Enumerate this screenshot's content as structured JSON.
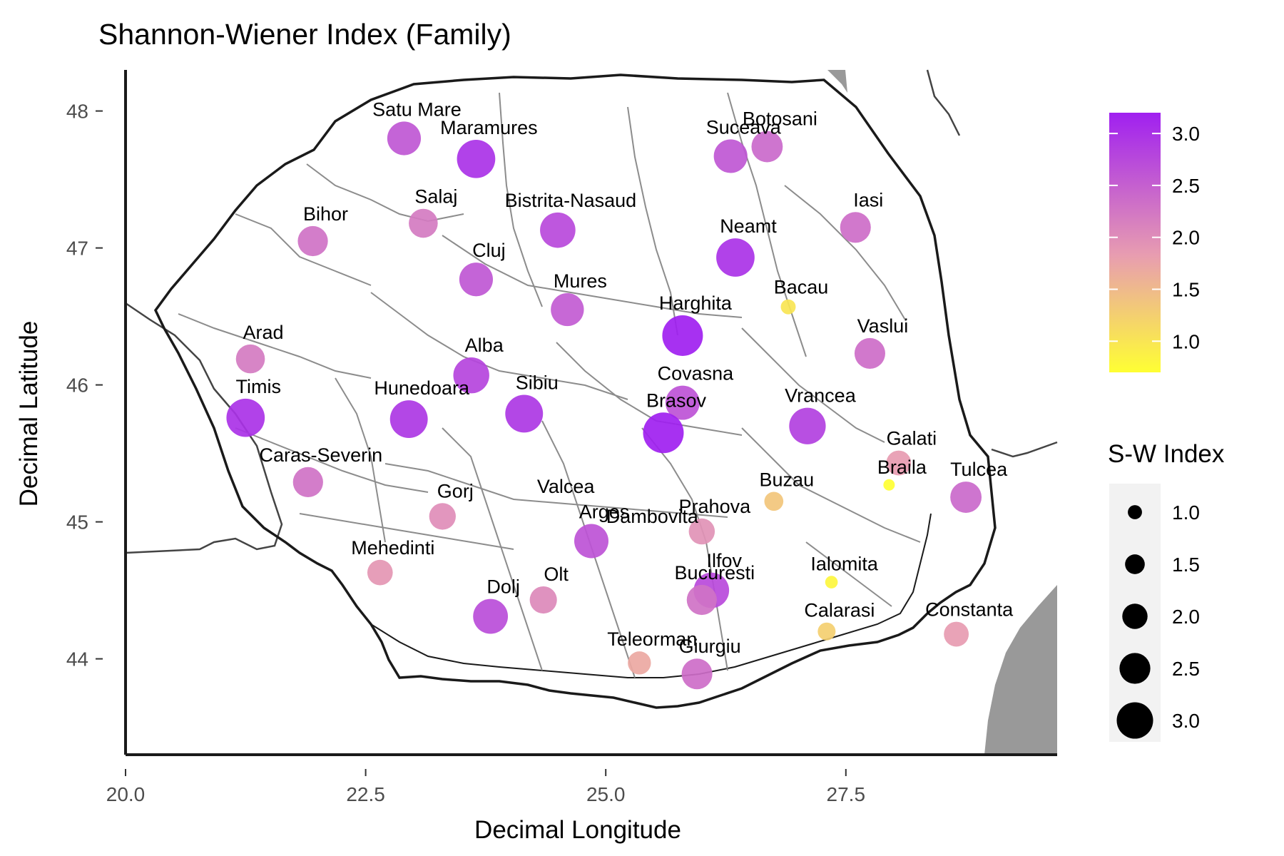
{
  "chart_data": {
    "type": "scatter",
    "title": "Shannon-Wiener Index (Family)",
    "xlabel": "Decimal Longitude",
    "ylabel": "Decimal Latitude",
    "xlim": [
      20.0,
      29.7
    ],
    "ylim": [
      43.3,
      48.3
    ],
    "x_ticks": [
      "20.0",
      "22.5",
      "25.0",
      "27.5"
    ],
    "x_tick_values": [
      20.0,
      22.5,
      25.0,
      27.5
    ],
    "y_ticks": [
      "44",
      "45",
      "46",
      "47",
      "48"
    ],
    "y_tick_values": [
      44,
      45,
      46,
      47,
      48
    ],
    "color_legend": {
      "labels": [
        "3.0",
        "2.5",
        "2.0",
        "1.5",
        "1.0"
      ],
      "values": [
        3.0,
        2.5,
        2.0,
        1.5,
        1.0
      ],
      "range": [
        0.7,
        3.2
      ],
      "low_color": "#ffff33",
      "mid_color": "#e89db0",
      "high_color": "#a020f0"
    },
    "size_legend": {
      "title": "S-W Index",
      "labels": [
        "1.0",
        "1.5",
        "2.0",
        "2.5",
        "3.0"
      ],
      "values": [
        1.0,
        1.5,
        2.0,
        2.5,
        3.0
      ]
    },
    "points": [
      {
        "name": "Satu Mare",
        "lon": 22.9,
        "lat": 47.8,
        "index": 2.6
      },
      {
        "name": "Maramures",
        "lon": 23.65,
        "lat": 47.65,
        "index": 3.0
      },
      {
        "name": "Botosani",
        "lon": 26.68,
        "lat": 47.74,
        "index": 2.4
      },
      {
        "name": "Suceava",
        "lon": 26.3,
        "lat": 47.67,
        "index": 2.6
      },
      {
        "name": "Salaj",
        "lon": 23.1,
        "lat": 47.18,
        "index": 2.2
      },
      {
        "name": "Bistrita-Nasaud",
        "lon": 24.5,
        "lat": 47.13,
        "index": 2.75
      },
      {
        "name": "Bihor",
        "lon": 21.95,
        "lat": 47.05,
        "index": 2.3
      },
      {
        "name": "Iasi",
        "lon": 27.6,
        "lat": 47.15,
        "index": 2.35
      },
      {
        "name": "Neamt",
        "lon": 26.35,
        "lat": 46.93,
        "index": 3.0
      },
      {
        "name": "Cluj",
        "lon": 23.65,
        "lat": 46.77,
        "index": 2.6
      },
      {
        "name": "Mures",
        "lon": 24.6,
        "lat": 46.55,
        "index": 2.55
      },
      {
        "name": "Bacau",
        "lon": 26.9,
        "lat": 46.57,
        "index": 1.0
      },
      {
        "name": "Harghita",
        "lon": 25.8,
        "lat": 46.36,
        "index": 3.2
      },
      {
        "name": "Vaslui",
        "lon": 27.75,
        "lat": 46.23,
        "index": 2.35
      },
      {
        "name": "Arad",
        "lon": 21.3,
        "lat": 46.19,
        "index": 2.2
      },
      {
        "name": "Alba",
        "lon": 23.6,
        "lat": 46.07,
        "index": 2.8
      },
      {
        "name": "Covasna",
        "lon": 25.8,
        "lat": 45.87,
        "index": 2.65
      },
      {
        "name": "Timis",
        "lon": 21.25,
        "lat": 45.76,
        "index": 3.0
      },
      {
        "name": "Hunedoara",
        "lon": 22.95,
        "lat": 45.75,
        "index": 2.95
      },
      {
        "name": "Sibiu",
        "lon": 24.15,
        "lat": 45.79,
        "index": 2.95
      },
      {
        "name": "Brasov",
        "lon": 25.6,
        "lat": 45.65,
        "index": 3.2
      },
      {
        "name": "Vrancea",
        "lon": 27.1,
        "lat": 45.7,
        "index": 2.85
      },
      {
        "name": "Galati",
        "lon": 28.05,
        "lat": 45.43,
        "index": 1.85
      },
      {
        "name": "Braila",
        "lon": 27.95,
        "lat": 45.27,
        "index": 0.7
      },
      {
        "name": "Caras-Severin",
        "lon": 21.9,
        "lat": 45.29,
        "index": 2.3
      },
      {
        "name": "Tulcea",
        "lon": 28.75,
        "lat": 45.18,
        "index": 2.4
      },
      {
        "name": "Buzau",
        "lon": 26.75,
        "lat": 45.15,
        "index": 1.35
      },
      {
        "name": "Valcea",
        "lon": 24.45,
        "lat": 45.15,
        "index": null
      },
      {
        "name": "Gorj",
        "lon": 23.3,
        "lat": 45.04,
        "index": 2.0
      },
      {
        "name": "Dambovita",
        "lon": 25.35,
        "lat": 44.93,
        "index": null
      },
      {
        "name": "Prahova",
        "lon": 26.0,
        "lat": 44.93,
        "index": 1.95
      },
      {
        "name": "Arges",
        "lon": 24.85,
        "lat": 44.86,
        "index": 2.65
      },
      {
        "name": "Mehedinti",
        "lon": 22.65,
        "lat": 44.63,
        "index": 1.9
      },
      {
        "name": "Ialomita",
        "lon": 27.35,
        "lat": 44.56,
        "index": 0.8
      },
      {
        "name": "Ilfov",
        "lon": 26.1,
        "lat": 44.5,
        "index": 2.75
      },
      {
        "name": "Bucuresti",
        "lon": 26.0,
        "lat": 44.43,
        "index": 2.3
      },
      {
        "name": "Olt",
        "lon": 24.35,
        "lat": 44.43,
        "index": 2.05
      },
      {
        "name": "Dolj",
        "lon": 23.8,
        "lat": 44.31,
        "index": 2.7
      },
      {
        "name": "Calarasi",
        "lon": 27.3,
        "lat": 44.2,
        "index": 1.25
      },
      {
        "name": "Constanta",
        "lon": 28.65,
        "lat": 44.18,
        "index": 1.85
      },
      {
        "name": "Teleorman",
        "lon": 25.35,
        "lat": 43.97,
        "index": 1.7
      },
      {
        "name": "Giurgiu",
        "lon": 25.95,
        "lat": 43.89,
        "index": 2.35
      }
    ]
  }
}
